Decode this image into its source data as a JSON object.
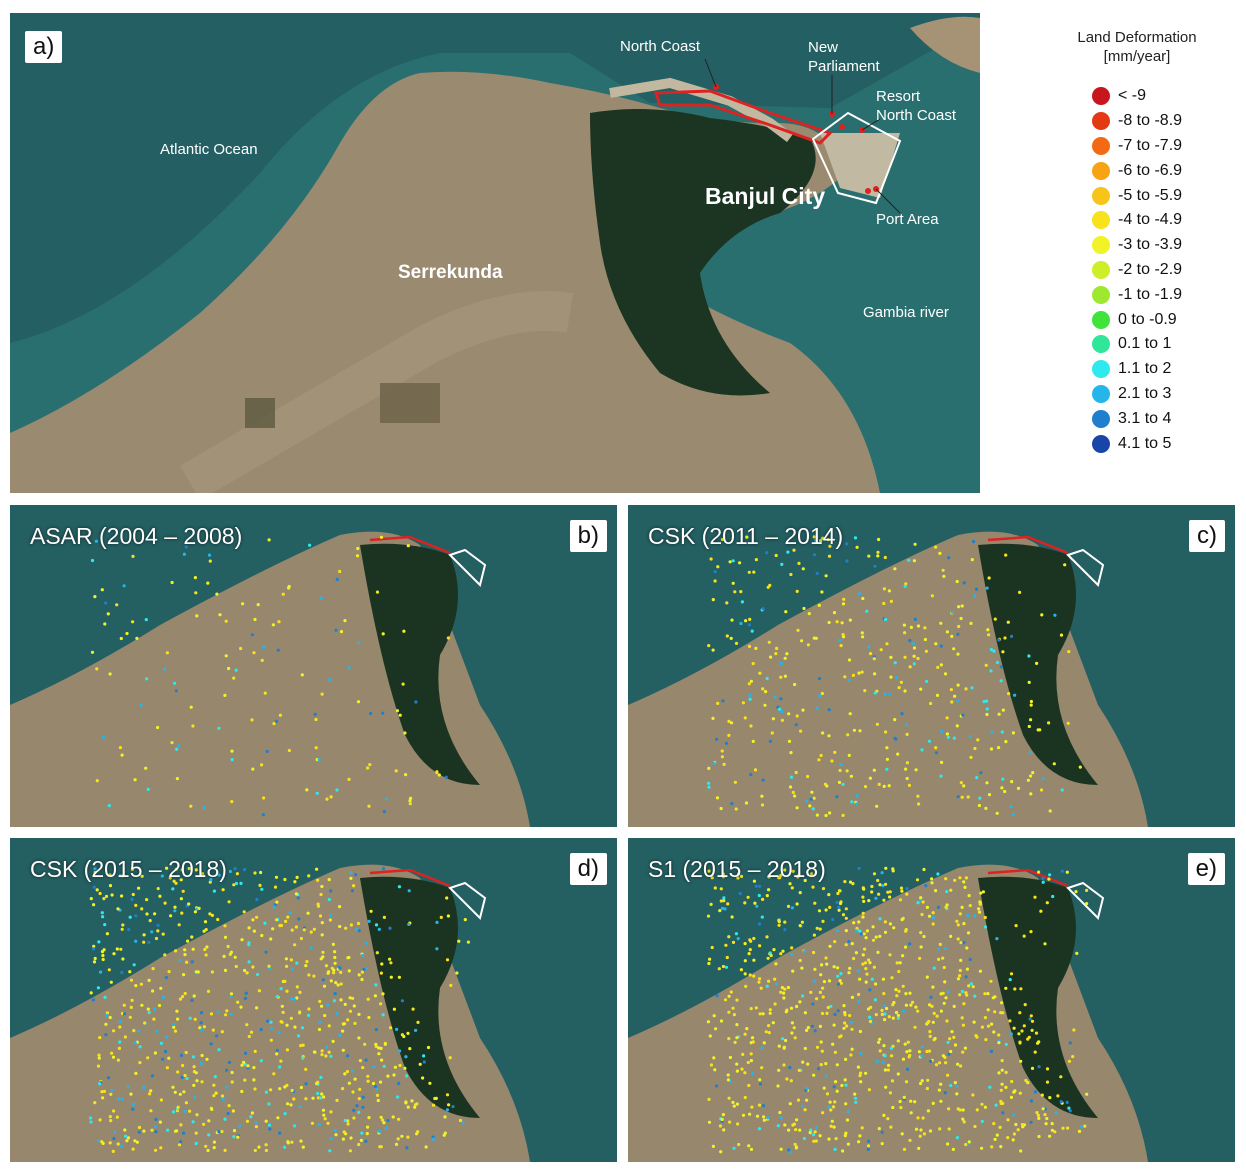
{
  "panel_a": {
    "tag": "a)",
    "labels": {
      "north_coast": "North Coast",
      "new_parliament_line1": "New",
      "new_parliament_line2": "Parliament",
      "resort_line1": "Resort",
      "resort_line2": "North Coast",
      "port_area": "Port Area",
      "banjul_city": "Banjul City",
      "atlantic_ocean": "Atlantic Ocean",
      "serrekunda": "Serrekunda",
      "gambia_river": "Gambia river"
    }
  },
  "panels": [
    {
      "tag": "b)",
      "title": "ASAR (2004 – 2008)"
    },
    {
      "tag": "c)",
      "title": "CSK (2011 – 2014)"
    },
    {
      "tag": "d)",
      "title": "CSK (2015 – 2018)"
    },
    {
      "tag": "e)",
      "title": "S1 (2015 – 2018)"
    }
  ],
  "legend": {
    "title_line1": "Land Deformation",
    "title_line2": "[mm/year]",
    "items": [
      {
        "label": "< -9",
        "color": "#c8161d"
      },
      {
        "label": "-8 to -8.9",
        "color": "#e43a14"
      },
      {
        "label": "-7 to -7.9",
        "color": "#f26a13"
      },
      {
        "label": "-6 to -6.9",
        "color": "#f7a314"
      },
      {
        "label": "-5 to -5.9",
        "color": "#f7c51a"
      },
      {
        "label": "-4 to -4.9",
        "color": "#f7e21c"
      },
      {
        "label": "-3 to -3.9",
        "color": "#f1f326"
      },
      {
        "label": "-2 to -2.9",
        "color": "#cdef2a"
      },
      {
        "label": "-1 to -1.9",
        "color": "#9fe830"
      },
      {
        "label": "0 to -0.9",
        "color": "#3fe33a"
      },
      {
        "label": "0.1 to 1",
        "color": "#2fe69a"
      },
      {
        "label": "1.1 to 2",
        "color": "#2ee9ee"
      },
      {
        "label": "2.1 to 3",
        "color": "#26b5ea"
      },
      {
        "label": "3.1 to 4",
        "color": "#1f7fcc"
      },
      {
        "label": "4.1 to 5",
        "color": "#1a45a8"
      }
    ]
  }
}
